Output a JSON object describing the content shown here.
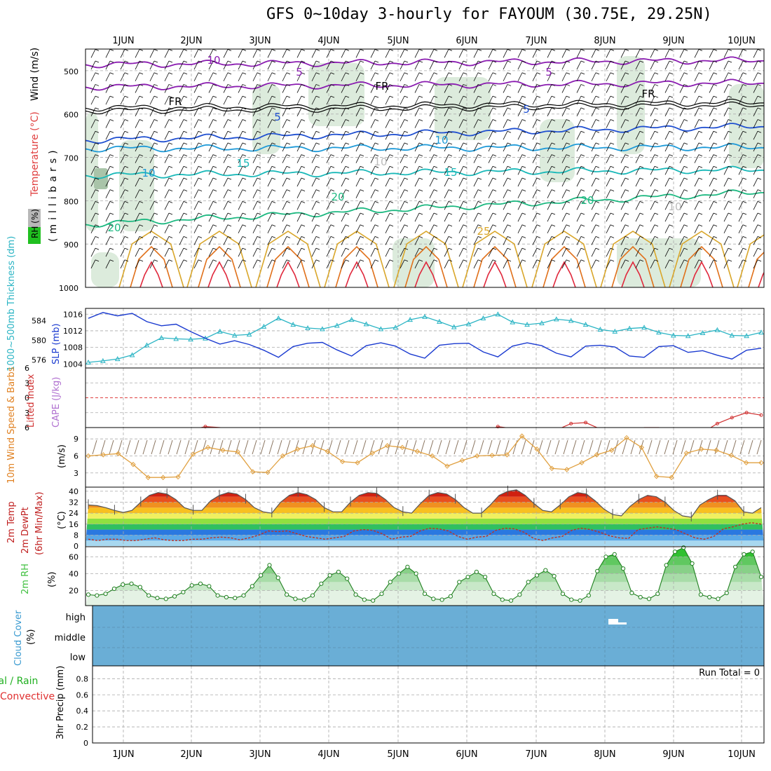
{
  "title": "GFS 0~10day 3-hourly for FAYOUM (30.75E, 29.25N)",
  "days": [
    "1JUN",
    "2JUN",
    "3JUN",
    "4JUN",
    "5JUN",
    "6JUN",
    "7JUN",
    "8JUN",
    "9JUN",
    "10JUN"
  ],
  "colors": {
    "purple": "#8a1cb0",
    "blue": "#1f4fd0",
    "lightblue": "#1e9ad8",
    "teal": "#18b8b8",
    "green": "#1cb880",
    "gold": "#d9a62a",
    "orange": "#e0701a",
    "red": "#e0283c",
    "cyan": "#2ab4c4",
    "slp": "#1a3ad0",
    "cloud": "#6aaed6",
    "rhgreen": "#40c040"
  },
  "chart_data": [
    {
      "panel": "upper_air",
      "type": "contour",
      "ylabel_parts": [
        "RH (%)",
        "Temperature (°C)",
        "Wind (m/s)"
      ],
      "ylabel_units": "(millibars)",
      "y_ticks": [
        500,
        600,
        700,
        800,
        900,
        1000
      ],
      "contour_labels": [
        "10",
        "5",
        "5",
        "FR",
        "FR",
        "FR",
        "5",
        "5",
        "10",
        "10",
        "15",
        "15",
        "20",
        "20",
        "20",
        "25",
        "10",
        "10"
      ]
    },
    {
      "panel": "thickness_slp",
      "type": "line",
      "ylabel_left": "1000~500mb Thickness (dm)",
      "ylabel_right": "SLP (mb)",
      "left_ticks": [
        576,
        580,
        584
      ],
      "right_ticks": [
        1004,
        1008,
        1012,
        1016
      ],
      "series": [
        {
          "name": "Thickness",
          "values": [
            575.5,
            575.8,
            576.2,
            577,
            579,
            580.5,
            580.3,
            580.2,
            580.4,
            581.8,
            581,
            581.2,
            582.8,
            584.5,
            583.2,
            582.5,
            582.3,
            583,
            584.2,
            583.3,
            582.3,
            582.6,
            584.2,
            584.8,
            583.8,
            582.7,
            583.3,
            584.5,
            585.3,
            583.7,
            583.2,
            583.5,
            584.3,
            584,
            583.2,
            582.2,
            581.8,
            582.4,
            582.6,
            581.6,
            581,
            580.9,
            581.5,
            582.1,
            581,
            580.9,
            581.6
          ]
        },
        {
          "name": "SLP",
          "values": [
            1015,
            1016.4,
            1015.6,
            1016.2,
            1014.2,
            1013.2,
            1013.6,
            1011.8,
            1010.2,
            1008.8,
            1009.6,
            1008.7,
            1007.3,
            1005.6,
            1008.2,
            1009,
            1009.2,
            1007.4,
            1005.9,
            1008.4,
            1009.1,
            1008.3,
            1006.4,
            1005.4,
            1008.5,
            1008.9,
            1009,
            1006.9,
            1005.7,
            1008.3,
            1009.1,
            1008.4,
            1006.6,
            1005.7,
            1008.3,
            1008.5,
            1008.1,
            1005.9,
            1005.6,
            1008.2,
            1008.4,
            1006.8,
            1007.2,
            1006.1,
            1005.2,
            1007.3,
            1007.8
          ]
        }
      ]
    },
    {
      "panel": "lifted_index",
      "type": "line",
      "ylabel_left": "Lifted Index",
      "ylabel_right": "CAPE (J/kg)",
      "y_ticks": [
        -6,
        -3,
        0,
        3,
        6
      ],
      "series": [
        {
          "name": "Lifted Index",
          "values": [
            7,
            6.5,
            6.3,
            7,
            6.5,
            7,
            7,
            6.5,
            5.8,
            6,
            6.5,
            6.8,
            7,
            6.6,
            7,
            7.3,
            7,
            7,
            7,
            6.5,
            7,
            6.8,
            7,
            6.2,
            7,
            6.5,
            7,
            7,
            5.8,
            6.2,
            7,
            7,
            6.5,
            5.2,
            5,
            6.3,
            7,
            7,
            6,
            6,
            6.4,
            6.2,
            7,
            5.2,
            4,
            3,
            3.5
          ]
        }
      ]
    },
    {
      "panel": "wind10m",
      "type": "line",
      "ylabel_left": "10m Wind Speed & Barbs",
      "ylabel_right": "(m/s)",
      "y_ticks": [
        3,
        6,
        9
      ],
      "series": [
        {
          "name": "10m Wind Speed",
          "values": [
            6,
            6.2,
            6.4,
            4.5,
            2.2,
            2.2,
            2.3,
            6.3,
            7.5,
            7,
            6.7,
            3.2,
            3.1,
            6,
            7.2,
            7.8,
            6.8,
            5,
            4.8,
            6.5,
            7.8,
            7.5,
            6.8,
            6,
            4.2,
            5.2,
            6,
            6.1,
            6.2,
            9.5,
            7.2,
            3.8,
            3.6,
            4.8,
            6.2,
            7,
            9.2,
            7.5,
            2.4,
            2.2,
            6.5,
            7.2,
            7,
            6.1,
            4.8,
            4.8
          ]
        }
      ]
    },
    {
      "panel": "temp2m",
      "type": "area",
      "ylabel_left": "2m Temp 2m DewPt (6hr Min/Max)",
      "ylabel_right": "(°C)",
      "y_ticks": [
        0,
        8,
        16,
        24,
        32,
        40
      ],
      "series": [
        {
          "name": "2m Temp",
          "values": [
            30,
            29.5,
            28,
            26,
            24.5,
            26,
            32,
            37,
            39,
            38,
            34,
            28,
            26,
            26,
            33,
            37,
            39,
            38,
            34,
            28,
            25,
            24,
            32,
            37,
            39,
            37.5,
            34,
            28,
            25,
            25,
            32,
            37,
            39,
            38.5,
            34,
            28,
            25,
            24,
            31,
            37,
            39,
            38,
            34,
            28,
            24,
            24,
            30,
            37,
            40,
            41,
            37,
            31,
            26,
            25,
            30,
            36,
            39,
            38,
            33,
            27,
            23,
            22,
            29,
            34,
            37,
            36,
            32,
            26,
            22,
            21,
            30,
            34,
            37,
            37,
            33,
            25,
            24,
            28
          ]
        },
        {
          "name": "2m DewPt",
          "values": [
            5,
            4,
            5,
            5,
            4,
            4,
            5,
            6,
            4.5,
            4,
            4,
            5,
            5,
            6,
            6.5,
            6,
            4.5,
            6,
            8,
            11,
            10.5,
            11,
            9,
            7,
            6,
            5,
            6,
            7,
            11,
            12,
            11.5,
            9,
            5,
            6.5,
            7,
            11,
            13,
            12.5,
            11,
            7,
            5,
            6.5,
            7,
            11.5,
            13,
            12.5,
            10,
            5.5,
            4,
            6,
            7,
            11.5,
            13,
            12,
            10,
            7.5,
            6,
            5.5,
            12,
            13,
            14,
            13,
            12,
            9,
            6,
            5,
            7,
            12.5,
            14,
            16,
            17,
            16
          ]
        }
      ]
    },
    {
      "panel": "rh2m",
      "type": "area",
      "ylabel_left": "2m RH",
      "ylabel_right": "(%)",
      "y_ticks": [
        20,
        40,
        60
      ],
      "series": [
        {
          "name": "2m RH",
          "values": [
            15,
            14,
            16,
            22,
            27,
            28,
            24,
            14,
            11,
            10,
            13,
            18,
            26,
            28,
            25,
            14,
            12,
            11,
            14,
            25,
            38,
            50,
            35,
            15,
            10,
            9,
            14,
            28,
            38,
            42,
            34,
            15,
            9,
            8,
            16,
            30,
            40,
            48,
            40,
            16,
            10,
            9,
            13,
            30,
            36,
            42,
            36,
            16,
            9,
            8,
            15,
            30,
            38,
            44,
            37,
            16,
            9,
            8,
            14,
            43,
            60,
            63,
            46,
            17,
            12,
            10,
            16,
            50,
            66,
            71,
            52,
            15,
            12,
            10,
            17,
            48,
            63,
            66,
            36
          ]
        }
      ]
    },
    {
      "panel": "cloud",
      "type": "heatmap",
      "ylabel_left": "Cloud Cover",
      "ylabel_right": "(%)",
      "levels": [
        "high",
        "middle",
        "low"
      ]
    },
    {
      "panel": "precip",
      "type": "bar",
      "ylabel_left": "Total / Rain Convective",
      "ylabel_right": "3hr Precip (mm)",
      "y_ticks": [
        0,
        0.2,
        0.4,
        0.6,
        0.8
      ],
      "run_total_label": "Run Total = 0",
      "series": [
        {
          "name": "Total",
          "values": []
        },
        {
          "name": "Convective",
          "values": []
        }
      ]
    }
  ]
}
